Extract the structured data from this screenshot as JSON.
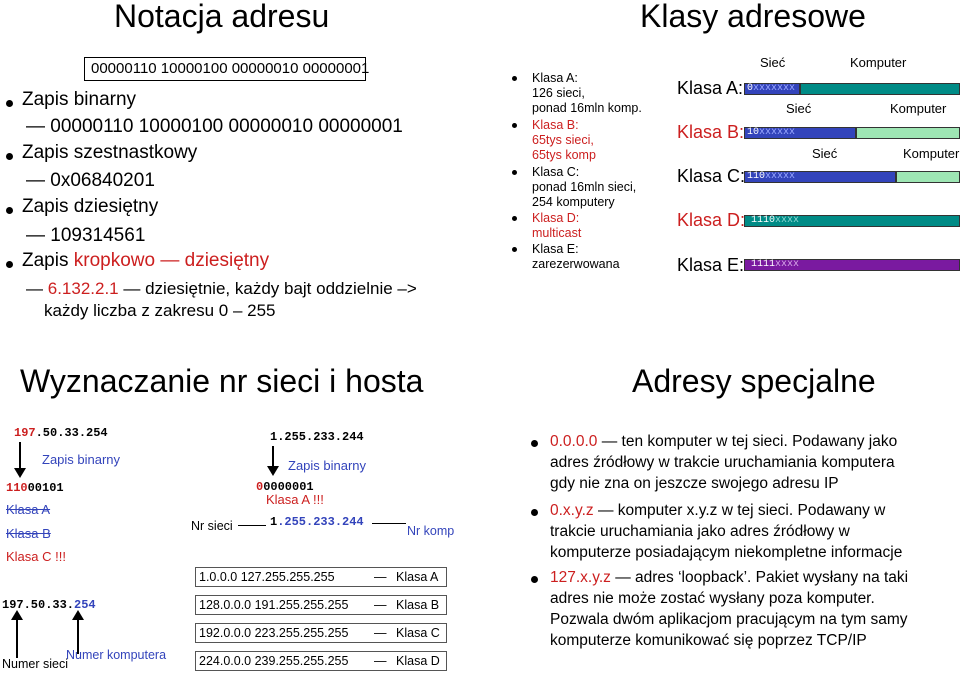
{
  "left_top": {
    "title": "Notacja adresu",
    "boxed_binary": "00000110 10000100 00000010 00000001",
    "items": [
      {
        "label": "Zapis binarny",
        "value": "00000110 10000100 00000010 00000001"
      },
      {
        "label": "Zapis szestnastkowy",
        "value": "0x06840201"
      },
      {
        "label": "Zapis dziesiętny",
        "value": "109314561"
      }
    ],
    "dotted": {
      "label_a": "Zapis ",
      "label_b": "kropkowo — dziesiętny",
      "value_a": "6.132.2.1",
      "value_b": " — dziesiętnie, każdy bajt oddzielnie –>",
      "value_c": "każdy liczba z zakresu 0 – 255"
    }
  },
  "right_top": {
    "title": "Klasy adresowe",
    "list": [
      {
        "text": "Klasa A:",
        "sub": [
          "126 sieci,",
          "ponad 16mln komp."
        ],
        "color": "#000000"
      },
      {
        "text": "Klasa B:",
        "sub": [
          "65tys sieci,",
          "65tys komp"
        ],
        "color": "#cc1f1f"
      },
      {
        "text": "Klasa C:",
        "sub": [
          "ponad 16mln sieci,",
          "254 komputery"
        ],
        "color": "#000000"
      },
      {
        "text": "Klasa D:",
        "sub": [
          "multicast"
        ],
        "color": "#cc1f1f"
      },
      {
        "text": "Klasa E:",
        "sub": [
          "zarezerwowana"
        ],
        "color": "#000000"
      }
    ],
    "class_labels": [
      "Klasa A:",
      "Klasa B:",
      "Klasa C:",
      "Klasa D:",
      "Klasa E:"
    ],
    "siec": "Sieć",
    "komputer": "Komputer",
    "bars": [
      {
        "prefix": "0",
        "rest": "xxxxxxx"
      },
      {
        "prefix": "10",
        "rest": "xxxxxx"
      },
      {
        "prefix": "110",
        "rest": "xxxxx"
      },
      {
        "prefix": "1110",
        "rest": "xxxx"
      },
      {
        "prefix": "1111",
        "rest": "xxxx"
      }
    ],
    "colors": {
      "blue": "#3344bb",
      "teal": "#008b86",
      "mint": "#9ee6b4",
      "purple": "#7a1aa0"
    }
  },
  "left_bottom": {
    "title": "Wyznaczanie nr sieci i hosta",
    "ip1": {
      "a": "197",
      "b": ".50.33.254"
    },
    "zapis": "Zapis binarny",
    "bin1": {
      "a": "110",
      "b": "00101"
    },
    "klasa_a": "Klasa A",
    "klasa_b": "Klasa B",
    "klasa_c": "Klasa C !!!",
    "ip2": {
      "a": "197.50.33.",
      "b": "254"
    },
    "numer_sieci": "Numer sieci",
    "numer_komp": "Numer komputera",
    "ip3": "1.255.233.244",
    "zapis2": "Zapis binarny",
    "bin2": {
      "a": "0",
      "b": "0000001"
    },
    "klasa_a2": "Klasa A !!!",
    "nr_sieci": "Nr sieci",
    "ip4": {
      "a": "1",
      "b": ".255.233.244"
    },
    "nr_komp": "Nr komp",
    "ranges": [
      {
        "range": "1.0.0.0   127.255.255.255",
        "cls": "Klasa A"
      },
      {
        "range": "128.0.0.0   191.255.255.255",
        "cls": "Klasa B"
      },
      {
        "range": "192.0.0.0   223.255.255.255",
        "cls": "Klasa C"
      },
      {
        "range": "224.0.0.0   239.255.255.255",
        "cls": "Klasa D"
      }
    ]
  },
  "right_bottom": {
    "title": "Adresy specjalne",
    "items": [
      {
        "code": "0.0.0.0",
        "lines": [
          " — ten komputer w tej sieci. Podawany jako",
          "adres źródłowy w trakcie uruchamiania komputera",
          "gdy nie zna on jeszcze swojego adresu IP"
        ]
      },
      {
        "code": "0.x.y.z",
        "lines": [
          " — komputer x.y.z w tej sieci. Podawany w",
          "trakcie uruchamiania jako adres źródłowy w",
          "komputerze posiadającym niekompletne informacje"
        ]
      },
      {
        "code": "127.x.y.z",
        "lines": [
          " — adres ‘loopback’. Pakiet wysłany na taki",
          "adres nie może zostać wysłany poza komputer.",
          "Pozwala dwóm aplikacjom pracującym na tym samy",
          "komputerze komunikować się poprzez TCP/IP"
        ]
      }
    ]
  }
}
